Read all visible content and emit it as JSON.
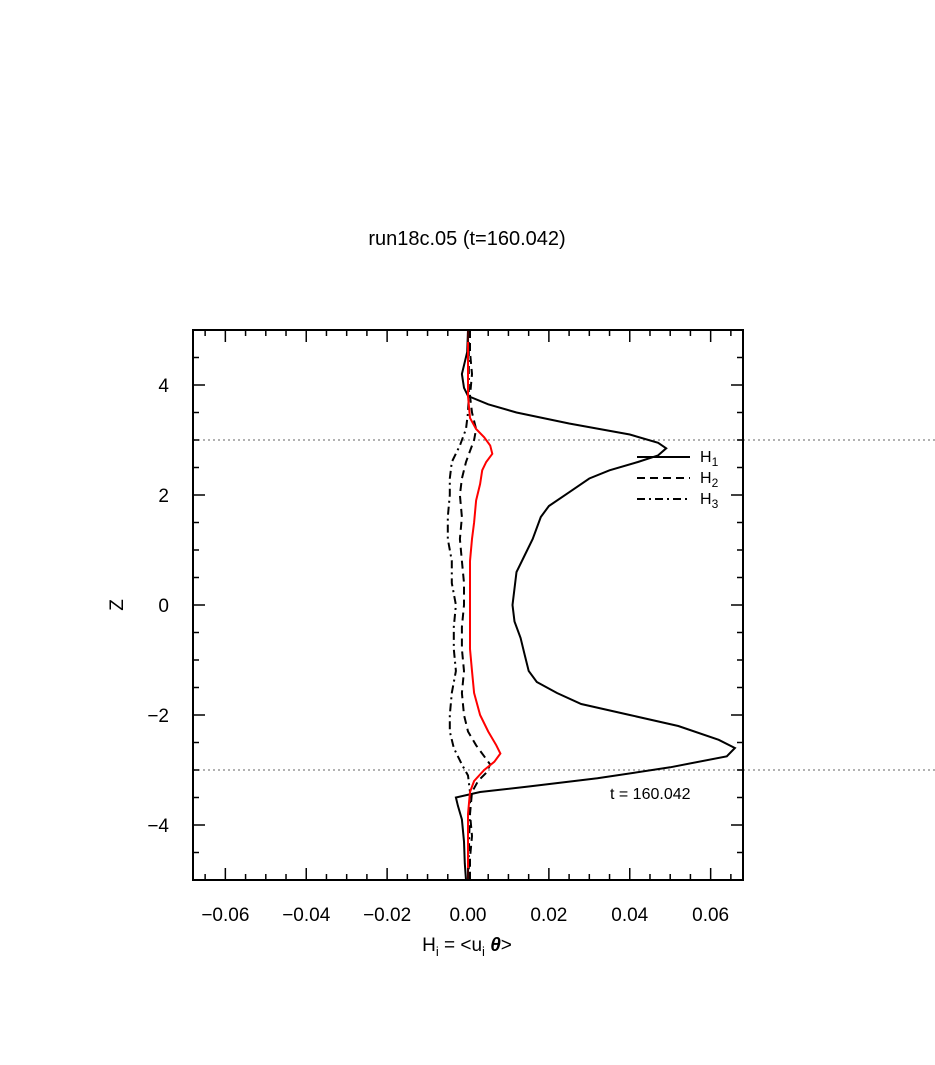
{
  "chart_data": {
    "type": "line",
    "title": "run18c.05 (t=160.042)",
    "xlabel": {
      "base": "H",
      "sub": "i",
      "mid": " = <u",
      "sub2": "i",
      "theta": " θ",
      "end": ">"
    },
    "ylabel": "Z",
    "xlim": [
      -0.068,
      0.068
    ],
    "ylim": [
      -5,
      5
    ],
    "xticks": [
      -0.06,
      -0.04,
      -0.02,
      0.0,
      0.02,
      0.04,
      0.06
    ],
    "xtick_labels": [
      "−0.06",
      "−0.04",
      "−0.02",
      "0.00",
      "0.02",
      "0.04",
      "0.06"
    ],
    "yticks": [
      -4,
      -2,
      0,
      2,
      4
    ],
    "ytick_labels": [
      "−4",
      "−2",
      "0",
      "2",
      "4"
    ],
    "hlines": [
      3,
      -3
    ],
    "annotation": "t  =  160.042",
    "legend_position": "top-right",
    "legend": [
      {
        "base": "H",
        "sub": "1",
        "style": "solid"
      },
      {
        "base": "H",
        "sub": "2",
        "style": "dashed"
      },
      {
        "base": "H",
        "sub": "3",
        "style": "dashdot"
      }
    ],
    "series": [
      {
        "style": "solid",
        "color": "#000000",
        "points": [
          [
            0.0,
            5.0
          ],
          [
            -0.0002,
            4.6
          ],
          [
            -0.0015,
            4.2
          ],
          [
            -0.001,
            3.95
          ],
          [
            0.0,
            3.8
          ],
          [
            0.005,
            3.65
          ],
          [
            0.012,
            3.5
          ],
          [
            0.025,
            3.3
          ],
          [
            0.04,
            3.1
          ],
          [
            0.047,
            2.95
          ],
          [
            0.049,
            2.85
          ],
          [
            0.047,
            2.72
          ],
          [
            0.042,
            2.6
          ],
          [
            0.035,
            2.45
          ],
          [
            0.03,
            2.3
          ],
          [
            0.025,
            2.05
          ],
          [
            0.02,
            1.8
          ],
          [
            0.018,
            1.6
          ],
          [
            0.016,
            1.2
          ],
          [
            0.014,
            0.9
          ],
          [
            0.012,
            0.6
          ],
          [
            0.0115,
            0.3
          ],
          [
            0.011,
            0.0
          ],
          [
            0.0115,
            -0.3
          ],
          [
            0.013,
            -0.6
          ],
          [
            0.014,
            -0.9
          ],
          [
            0.015,
            -1.2
          ],
          [
            0.017,
            -1.4
          ],
          [
            0.022,
            -1.6
          ],
          [
            0.028,
            -1.8
          ],
          [
            0.04,
            -2.0
          ],
          [
            0.052,
            -2.2
          ],
          [
            0.062,
            -2.45
          ],
          [
            0.066,
            -2.6
          ],
          [
            0.064,
            -2.75
          ],
          [
            0.05,
            -2.95
          ],
          [
            0.032,
            -3.15
          ],
          [
            0.015,
            -3.3
          ],
          [
            0.003,
            -3.4
          ],
          [
            -0.003,
            -3.5
          ],
          [
            -0.0025,
            -3.65
          ],
          [
            -0.0015,
            -3.9
          ],
          [
            -0.001,
            -4.3
          ],
          [
            -0.0008,
            -4.7
          ],
          [
            -0.0005,
            -5.0
          ]
        ]
      },
      {
        "style": "dashed",
        "color": "#000000",
        "points": [
          [
            0.0005,
            5.0
          ],
          [
            0.0005,
            4.6
          ],
          [
            0.001,
            4.2
          ],
          [
            0.0005,
            3.8
          ],
          [
            0.001,
            3.5
          ],
          [
            0.002,
            3.2
          ],
          [
            0.0015,
            3.0
          ],
          [
            0.0005,
            2.8
          ],
          [
            -0.0005,
            2.6
          ],
          [
            -0.0015,
            2.3
          ],
          [
            -0.002,
            2.0
          ],
          [
            -0.0015,
            1.6
          ],
          [
            -0.002,
            1.2
          ],
          [
            -0.0015,
            0.8
          ],
          [
            -0.001,
            0.4
          ],
          [
            -0.001,
            0.0
          ],
          [
            -0.0015,
            -0.4
          ],
          [
            -0.0015,
            -0.8
          ],
          [
            -0.001,
            -1.2
          ],
          [
            -0.0015,
            -1.6
          ],
          [
            -0.001,
            -2.0
          ],
          [
            0.0,
            -2.3
          ],
          [
            0.002,
            -2.55
          ],
          [
            0.004,
            -2.75
          ],
          [
            0.0055,
            -2.9
          ],
          [
            0.0045,
            -3.05
          ],
          [
            0.0025,
            -3.2
          ],
          [
            0.001,
            -3.4
          ],
          [
            0.0005,
            -3.8
          ],
          [
            0.001,
            -4.2
          ],
          [
            0.0005,
            -4.6
          ],
          [
            0.0005,
            -5.0
          ]
        ]
      },
      {
        "style": "dashdot",
        "color": "#000000",
        "points": [
          [
            0.0002,
            5.0
          ],
          [
            0.0002,
            4.6
          ],
          [
            0.0002,
            4.2
          ],
          [
            0.0002,
            3.8
          ],
          [
            0.0,
            3.5
          ],
          [
            -0.0005,
            3.2
          ],
          [
            -0.002,
            2.9
          ],
          [
            -0.004,
            2.6
          ],
          [
            -0.0045,
            2.3
          ],
          [
            -0.0045,
            2.0
          ],
          [
            -0.005,
            1.6
          ],
          [
            -0.005,
            1.2
          ],
          [
            -0.004,
            0.8
          ],
          [
            -0.004,
            0.4
          ],
          [
            -0.003,
            0.0
          ],
          [
            -0.0035,
            -0.4
          ],
          [
            -0.0035,
            -0.8
          ],
          [
            -0.003,
            -1.2
          ],
          [
            -0.004,
            -1.6
          ],
          [
            -0.0045,
            -2.0
          ],
          [
            -0.0045,
            -2.3
          ],
          [
            -0.0035,
            -2.6
          ],
          [
            -0.0015,
            -2.9
          ],
          [
            0.0,
            -3.1
          ],
          [
            0.0005,
            -3.4
          ],
          [
            0.0005,
            -3.8
          ],
          [
            0.0003,
            -4.2
          ],
          [
            0.0002,
            -4.6
          ],
          [
            0.0002,
            -5.0
          ]
        ]
      },
      {
        "style": "solid",
        "color": "#ff0000",
        "points": [
          [
            0.0,
            5.0
          ],
          [
            0.0,
            4.6
          ],
          [
            0.0,
            4.2
          ],
          [
            0.0,
            3.8
          ],
          [
            0.0005,
            3.4
          ],
          [
            0.002,
            3.2
          ],
          [
            0.004,
            3.05
          ],
          [
            0.0055,
            2.9
          ],
          [
            0.006,
            2.75
          ],
          [
            0.0045,
            2.6
          ],
          [
            0.0035,
            2.45
          ],
          [
            0.003,
            2.2
          ],
          [
            0.002,
            1.9
          ],
          [
            0.0015,
            1.5
          ],
          [
            0.001,
            1.2
          ],
          [
            0.0005,
            0.8
          ],
          [
            0.0005,
            0.4
          ],
          [
            0.0005,
            0.0
          ],
          [
            0.0005,
            -0.4
          ],
          [
            0.0005,
            -0.8
          ],
          [
            0.001,
            -1.2
          ],
          [
            0.0015,
            -1.6
          ],
          [
            0.003,
            -2.0
          ],
          [
            0.005,
            -2.3
          ],
          [
            0.007,
            -2.55
          ],
          [
            0.008,
            -2.7
          ],
          [
            0.0065,
            -2.85
          ],
          [
            0.004,
            -3.0
          ],
          [
            0.0015,
            -3.2
          ],
          [
            0.0005,
            -3.4
          ],
          [
            0.0,
            -3.8
          ],
          [
            0.0,
            -4.2
          ],
          [
            0.0,
            -4.6
          ],
          [
            0.0,
            -5.0
          ]
        ]
      }
    ]
  }
}
